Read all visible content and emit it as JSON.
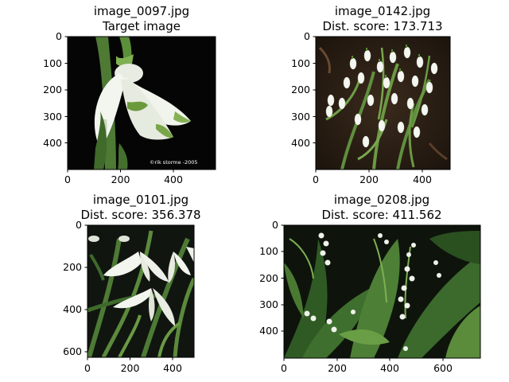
{
  "figure": {
    "panels": [
      {
        "title_line1": "image_0097.jpg",
        "title_line2": "Target image",
        "image_description": "white snowdrop flower close-up with green-tipped petals on black background",
        "watermark": "©rik storme -2005",
        "x_ticks": [
          "0",
          "200",
          "400"
        ],
        "y_ticks": [
          "0",
          "100",
          "200",
          "300",
          "400"
        ]
      },
      {
        "title_line1": "image_0142.jpg",
        "title_line2": "Dist. score: 173.713",
        "image_description": "cluster of many white snowdrops growing from dark soil",
        "x_ticks": [
          "0",
          "200",
          "400"
        ],
        "y_ticks": [
          "0",
          "100",
          "200",
          "300",
          "400"
        ]
      },
      {
        "title_line1": "image_0101.jpg",
        "title_line2": "Dist. score: 356.378",
        "image_description": "white snowdrop flowers among green leaves on dark background",
        "x_ticks": [
          "0",
          "200",
          "400"
        ],
        "y_ticks": [
          "0",
          "200",
          "400",
          "600"
        ]
      },
      {
        "title_line1": "image_0208.jpg",
        "title_line2": "Dist. score: 411.562",
        "image_description": "lily of the valley with small white bell flowers among broad green leaves",
        "x_ticks": [
          "0",
          "200",
          "400",
          "600"
        ],
        "y_ticks": [
          "0",
          "100",
          "200",
          "300",
          "400"
        ]
      }
    ],
    "colors": {
      "axis": "#000000",
      "background": "#ffffff",
      "leaf_green": "#5f8f3e",
      "petal_white": "#f2f4ee"
    }
  },
  "chart_data": [
    {
      "type": "image",
      "title": "image_0097.jpg\nTarget image",
      "xlim": [
        0,
        560
      ],
      "ylim": [
        500,
        0
      ],
      "xticks": [
        0,
        200,
        400
      ],
      "yticks": [
        0,
        100,
        200,
        300,
        400
      ]
    },
    {
      "type": "image",
      "title": "image_0142.jpg\nDist. score: 173.713",
      "score": 173.713,
      "xlim": [
        0,
        500
      ],
      "ylim": [
        500,
        0
      ],
      "xticks": [
        0,
        200,
        400
      ],
      "yticks": [
        0,
        100,
        200,
        300,
        400
      ]
    },
    {
      "type": "image",
      "title": "image_0101.jpg\nDist. score: 356.378",
      "score": 356.378,
      "xlim": [
        0,
        500
      ],
      "ylim": [
        625,
        0
      ],
      "xticks": [
        0,
        200,
        400
      ],
      "yticks": [
        0,
        200,
        400,
        600
      ]
    },
    {
      "type": "image",
      "title": "image_0208.jpg\nDist. score: 411.562",
      "score": 411.562,
      "xlim": [
        0,
        740
      ],
      "ylim": [
        500,
        0
      ],
      "xticks": [
        0,
        200,
        400,
        600
      ],
      "yticks": [
        0,
        100,
        200,
        300,
        400
      ]
    }
  ]
}
